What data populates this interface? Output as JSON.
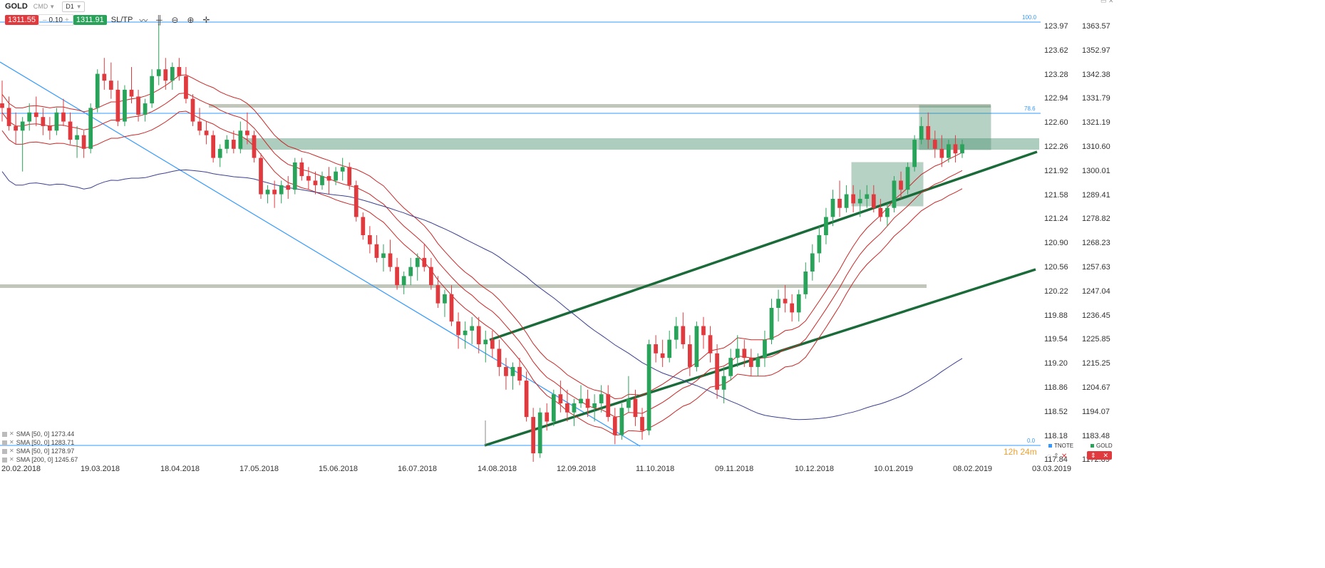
{
  "toolbar": {
    "symbol": "GOLD",
    "type": "CMD",
    "timeframe": "D1",
    "sell_price": "1311.55",
    "lot_minus": "–",
    "lot_value": "0.10",
    "lot_plus": "+",
    "buy_price": "1311.91",
    "sltp": "SL/TP",
    "tools": [
      "line-chart-icon",
      "candles-icon",
      "zoom-out-icon",
      "zoom-in-icon",
      "crosshair-icon"
    ]
  },
  "chart_data": {
    "type": "candlestick",
    "symbol": "GOLD",
    "timeframe": "D1",
    "xlabels": [
      "20.02.2018",
      "19.03.2018",
      "18.04.2018",
      "17.05.2018",
      "15.06.2018",
      "16.07.2018",
      "14.08.2018",
      "12.09.2018",
      "11.10.2018",
      "09.11.2018",
      "10.12.2018",
      "10.01.2019",
      "08.02.2019",
      "03.03.2019"
    ],
    "price_axis_right": [
      "1363.57",
      "1352.97",
      "1342.38",
      "1331.79",
      "1321.19",
      "1310.60",
      "1300.01",
      "1289.41",
      "1278.82",
      "1268.23",
      "1257.63",
      "1247.04",
      "1236.45",
      "1225.85",
      "1215.25",
      "1204.67",
      "1194.07",
      "1183.48",
      "1172.89"
    ],
    "price_axis_secondary": [
      "123.97",
      "123.62",
      "123.28",
      "122.94",
      "122.60",
      "122.26",
      "121.92",
      "121.58",
      "121.24",
      "120.90",
      "120.56",
      "120.22",
      "119.88",
      "119.54",
      "119.20",
      "118.86",
      "118.52",
      "118.18",
      "117.84"
    ],
    "price_range": [
      1160,
      1370
    ],
    "candles": [
      [
        1330,
        1340,
        1322,
        1328
      ],
      [
        1328,
        1333,
        1318,
        1320
      ],
      [
        1320,
        1326,
        1312,
        1318
      ],
      [
        1318,
        1324,
        1300,
        1322
      ],
      [
        1322,
        1330,
        1318,
        1326
      ],
      [
        1326,
        1333,
        1320,
        1324
      ],
      [
        1324,
        1328,
        1316,
        1320
      ],
      [
        1320,
        1324,
        1314,
        1318
      ],
      [
        1318,
        1328,
        1316,
        1326
      ],
      [
        1326,
        1332,
        1320,
        1322
      ],
      [
        1322,
        1326,
        1312,
        1314
      ],
      [
        1314,
        1320,
        1306,
        1316
      ],
      [
        1316,
        1318,
        1306,
        1310
      ],
      [
        1310,
        1330,
        1308,
        1328
      ],
      [
        1328,
        1345,
        1326,
        1343
      ],
      [
        1343,
        1350,
        1336,
        1340
      ],
      [
        1340,
        1348,
        1332,
        1336
      ],
      [
        1336,
        1340,
        1320,
        1322
      ],
      [
        1322,
        1338,
        1320,
        1336
      ],
      [
        1336,
        1346,
        1330,
        1333
      ],
      [
        1333,
        1336,
        1322,
        1325
      ],
      [
        1325,
        1332,
        1322,
        1330
      ],
      [
        1330,
        1345,
        1328,
        1342
      ],
      [
        1342,
        1365,
        1338,
        1345
      ],
      [
        1345,
        1350,
        1336,
        1340
      ],
      [
        1340,
        1348,
        1336,
        1346
      ],
      [
        1346,
        1350,
        1340,
        1342
      ],
      [
        1342,
        1346,
        1330,
        1332
      ],
      [
        1332,
        1334,
        1320,
        1322
      ],
      [
        1322,
        1328,
        1316,
        1318
      ],
      [
        1318,
        1322,
        1312,
        1316
      ],
      [
        1316,
        1318,
        1304,
        1306
      ],
      [
        1306,
        1312,
        1302,
        1310
      ],
      [
        1310,
        1316,
        1308,
        1314
      ],
      [
        1314,
        1318,
        1308,
        1310
      ],
      [
        1310,
        1322,
        1308,
        1318
      ],
      [
        1318,
        1326,
        1312,
        1316
      ],
      [
        1316,
        1318,
        1304,
        1306
      ],
      [
        1306,
        1308,
        1288,
        1290
      ],
      [
        1290,
        1294,
        1286,
        1292
      ],
      [
        1292,
        1296,
        1284,
        1290
      ],
      [
        1290,
        1296,
        1286,
        1294
      ],
      [
        1294,
        1298,
        1288,
        1292
      ],
      [
        1292,
        1306,
        1290,
        1304
      ],
      [
        1304,
        1306,
        1296,
        1298
      ],
      [
        1298,
        1302,
        1292,
        1296
      ],
      [
        1296,
        1300,
        1290,
        1294
      ],
      [
        1294,
        1300,
        1292,
        1298
      ],
      [
        1298,
        1302,
        1290,
        1296
      ],
      [
        1296,
        1302,
        1294,
        1300
      ],
      [
        1300,
        1306,
        1296,
        1302
      ],
      [
        1302,
        1304,
        1292,
        1294
      ],
      [
        1294,
        1296,
        1278,
        1280
      ],
      [
        1280,
        1282,
        1270,
        1272
      ],
      [
        1272,
        1276,
        1264,
        1268
      ],
      [
        1268,
        1272,
        1260,
        1262
      ],
      [
        1262,
        1268,
        1256,
        1264
      ],
      [
        1264,
        1270,
        1256,
        1258
      ],
      [
        1258,
        1262,
        1248,
        1250
      ],
      [
        1250,
        1256,
        1246,
        1254
      ],
      [
        1254,
        1262,
        1250,
        1258
      ],
      [
        1258,
        1264,
        1252,
        1262
      ],
      [
        1262,
        1268,
        1256,
        1258
      ],
      [
        1258,
        1262,
        1248,
        1250
      ],
      [
        1250,
        1254,
        1240,
        1242
      ],
      [
        1242,
        1248,
        1236,
        1246
      ],
      [
        1246,
        1250,
        1232,
        1234
      ],
      [
        1234,
        1238,
        1222,
        1228
      ],
      [
        1228,
        1234,
        1222,
        1230
      ],
      [
        1230,
        1236,
        1224,
        1232
      ],
      [
        1232,
        1236,
        1220,
        1224
      ],
      [
        1224,
        1230,
        1216,
        1226
      ],
      [
        1226,
        1230,
        1218,
        1222
      ],
      [
        1222,
        1226,
        1210,
        1214
      ],
      [
        1214,
        1218,
        1204,
        1210
      ],
      [
        1210,
        1216,
        1204,
        1214
      ],
      [
        1214,
        1218,
        1206,
        1208
      ],
      [
        1208,
        1212,
        1190,
        1192
      ],
      [
        1192,
        1196,
        1164,
        1176
      ],
      [
        1176,
        1196,
        1174,
        1194
      ],
      [
        1194,
        1198,
        1186,
        1190
      ],
      [
        1190,
        1204,
        1188,
        1202
      ],
      [
        1202,
        1208,
        1194,
        1198
      ],
      [
        1198,
        1204,
        1190,
        1194
      ],
      [
        1194,
        1200,
        1188,
        1198
      ],
      [
        1198,
        1206,
        1196,
        1200
      ],
      [
        1200,
        1204,
        1192,
        1196
      ],
      [
        1196,
        1202,
        1190,
        1198
      ],
      [
        1198,
        1206,
        1194,
        1202
      ],
      [
        1202,
        1206,
        1190,
        1192
      ],
      [
        1192,
        1196,
        1180,
        1184
      ],
      [
        1184,
        1198,
        1182,
        1196
      ],
      [
        1196,
        1210,
        1194,
        1200
      ],
      [
        1200,
        1204,
        1188,
        1192
      ],
      [
        1192,
        1196,
        1182,
        1186
      ],
      [
        1186,
        1226,
        1184,
        1224
      ],
      [
        1224,
        1228,
        1216,
        1220
      ],
      [
        1220,
        1226,
        1214,
        1218
      ],
      [
        1218,
        1230,
        1216,
        1226
      ],
      [
        1226,
        1236,
        1222,
        1232
      ],
      [
        1232,
        1238,
        1222,
        1224
      ],
      [
        1224,
        1228,
        1210,
        1214
      ],
      [
        1214,
        1234,
        1212,
        1232
      ],
      [
        1232,
        1236,
        1222,
        1228
      ],
      [
        1228,
        1232,
        1216,
        1220
      ],
      [
        1220,
        1224,
        1200,
        1204
      ],
      [
        1204,
        1214,
        1198,
        1210
      ],
      [
        1210,
        1222,
        1208,
        1218
      ],
      [
        1218,
        1228,
        1214,
        1222
      ],
      [
        1222,
        1226,
        1214,
        1218
      ],
      [
        1218,
        1222,
        1210,
        1214
      ],
      [
        1214,
        1220,
        1210,
        1218
      ],
      [
        1218,
        1230,
        1214,
        1226
      ],
      [
        1226,
        1244,
        1224,
        1240
      ],
      [
        1240,
        1248,
        1234,
        1244
      ],
      [
        1244,
        1250,
        1238,
        1242
      ],
      [
        1242,
        1246,
        1234,
        1238
      ],
      [
        1238,
        1248,
        1234,
        1246
      ],
      [
        1246,
        1260,
        1244,
        1256
      ],
      [
        1256,
        1268,
        1252,
        1264
      ],
      [
        1264,
        1276,
        1260,
        1272
      ],
      [
        1272,
        1284,
        1268,
        1280
      ],
      [
        1280,
        1292,
        1276,
        1288
      ],
      [
        1288,
        1296,
        1280,
        1284
      ],
      [
        1284,
        1294,
        1282,
        1290
      ],
      [
        1290,
        1294,
        1282,
        1286
      ],
      [
        1286,
        1292,
        1280,
        1288
      ],
      [
        1288,
        1294,
        1284,
        1290
      ],
      [
        1290,
        1294,
        1282,
        1284
      ],
      [
        1284,
        1288,
        1278,
        1280
      ],
      [
        1280,
        1286,
        1276,
        1284
      ],
      [
        1284,
        1298,
        1282,
        1296
      ],
      [
        1296,
        1300,
        1288,
        1292
      ],
      [
        1292,
        1304,
        1290,
        1302
      ],
      [
        1302,
        1316,
        1300,
        1314
      ],
      [
        1314,
        1324,
        1312,
        1320
      ],
      [
        1320,
        1326,
        1310,
        1314
      ],
      [
        1314,
        1318,
        1306,
        1310
      ],
      [
        1310,
        1316,
        1302,
        1306
      ],
      [
        1306,
        1314,
        1304,
        1312
      ],
      [
        1312,
        1316,
        1304,
        1308
      ],
      [
        1308,
        1314,
        1306,
        1312
      ]
    ],
    "sma_50_series": "SMA [50, 0]",
    "sma_200_series": "SMA [200, 0]",
    "legend": [
      {
        "label": "SMA [50, 0] 1273.44",
        "color": "#d32f2f"
      },
      {
        "label": "SMA [50, 0] 1283.71",
        "color": "#d32f2f"
      },
      {
        "label": "SMA [50, 0] 1278.97",
        "color": "#d32f2f"
      },
      {
        "label": "SMA [200, 0] 1245.67",
        "color": "#3b3f8f"
      }
    ],
    "fibonacci": {
      "levels": [
        "100.0",
        "78.6",
        "0.0"
      ],
      "color": "#3399ff"
    },
    "colors": {
      "bull": "#2aa35a",
      "bear": "#e03a3e",
      "sma": "#c62828",
      "sma200": "#3b3f8f",
      "channel": "#1b6b3a",
      "zone": "#4a9070",
      "grid_line": "#3399ff"
    }
  },
  "footer": {
    "timer": "12h 24m",
    "tnote_label": "TNOTE",
    "gold_label": "GOLD"
  }
}
